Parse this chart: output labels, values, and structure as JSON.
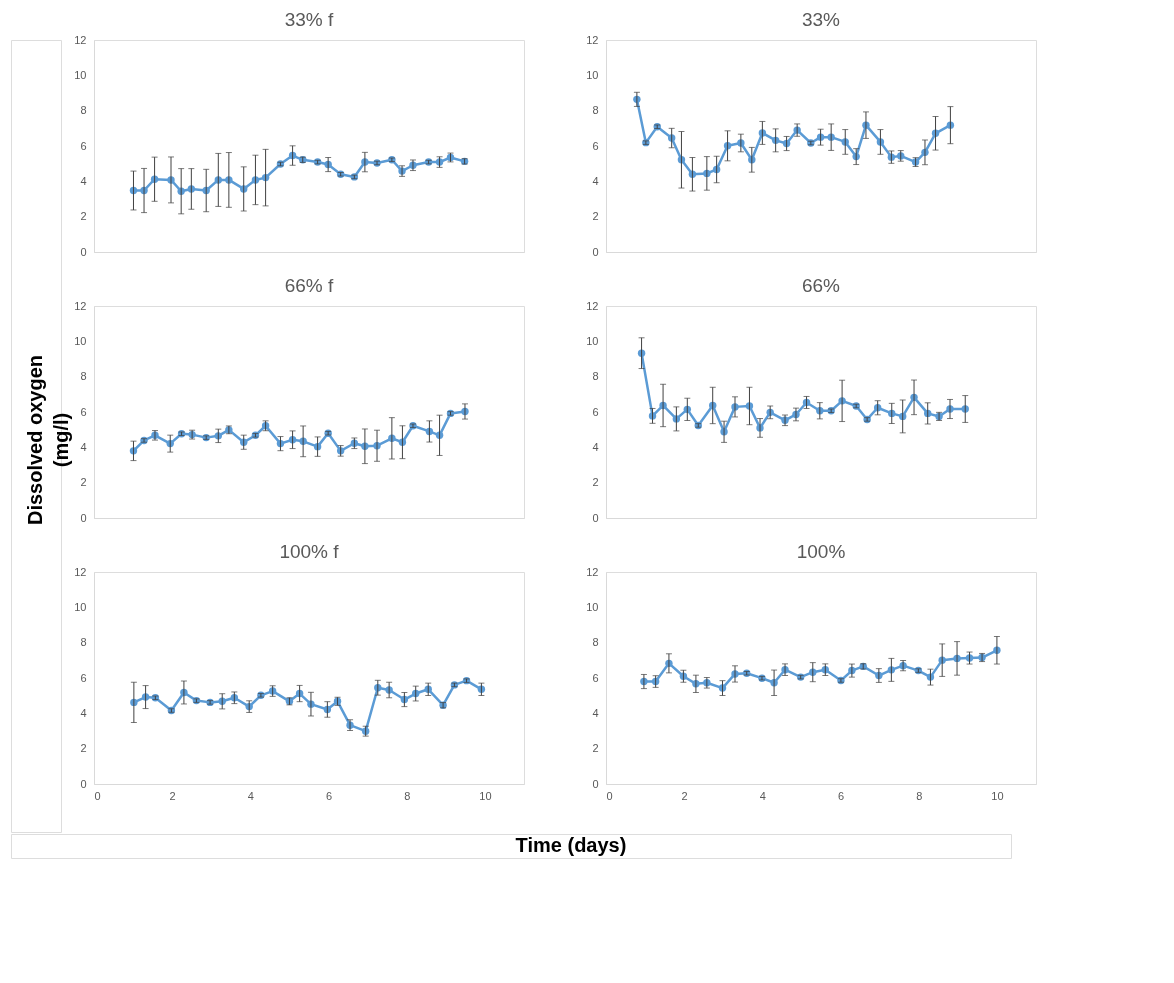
{
  "chart_data": [
    {
      "type": "line",
      "title": "33% f",
      "marker": "circle",
      "grid": false,
      "legend": false,
      "tick_labels": "y",
      "xlim": [
        0,
        11
      ],
      "xticks": [
        0,
        2,
        4,
        6,
        8,
        10
      ],
      "ylim": [
        0,
        12
      ],
      "yticks": [
        0,
        2,
        4,
        6,
        8,
        10,
        12
      ],
      "series": [
        {
          "color": "#5b9bd5",
          "x": [
            1.01,
            1.28,
            1.55,
            1.97,
            2.23,
            2.49,
            2.87,
            3.18,
            3.45,
            3.83,
            4.13,
            4.39,
            4.77,
            5.08,
            5.34,
            5.72,
            5.99,
            6.31,
            6.66,
            6.93,
            7.24,
            7.62,
            7.88,
            8.16,
            8.56,
            8.84,
            9.12,
            9.48
          ],
          "values": [
            3.48,
            3.48,
            4.12,
            4.08,
            3.44,
            3.57,
            3.48,
            4.08,
            4.08,
            3.57,
            4.08,
            4.21,
            4.98,
            5.46,
            5.22,
            5.09,
            4.95,
            4.4,
            4.25,
            5.09,
            5.04,
            5.22,
            4.58,
            4.91,
            5.09,
            5.09,
            5.35,
            5.13
          ],
          "errors": [
            1.1,
            1.25,
            1.25,
            1.3,
            1.28,
            1.15,
            1.2,
            1.5,
            1.55,
            1.25,
            1.4,
            1.6,
            0.1,
            0.55,
            0.15,
            0.1,
            0.4,
            0.1,
            0.1,
            0.55,
            0.1,
            0.1,
            0.3,
            0.3,
            0.1,
            0.3,
            0.25,
            0.15
          ]
        }
      ]
    },
    {
      "type": "line",
      "title": "33%",
      "marker": "circle",
      "grid": false,
      "legend": false,
      "tick_labels": "y",
      "xlim": [
        0,
        11
      ],
      "xticks": [
        0,
        2,
        4,
        6,
        8,
        10
      ],
      "ylim": [
        0,
        12
      ],
      "yticks": [
        0,
        2,
        4,
        6,
        8,
        10,
        12
      ],
      "series": [
        {
          "color": "#5b9bd5",
          "x": [
            0.79,
            1.02,
            1.31,
            1.68,
            1.93,
            2.21,
            2.58,
            2.83,
            3.11,
            3.45,
            3.73,
            4.0,
            4.34,
            4.62,
            4.89,
            5.24,
            5.49,
            5.76,
            6.12,
            6.4,
            6.65,
            7.02,
            7.3,
            7.54,
            7.92,
            8.16,
            8.43,
            8.81
          ],
          "values": [
            8.64,
            6.19,
            7.09,
            6.45,
            5.22,
            4.4,
            4.45,
            4.67,
            6.01,
            6.17,
            5.22,
            6.74,
            6.32,
            6.14,
            6.9,
            6.17,
            6.5,
            6.5,
            6.23,
            5.4,
            7.18,
            6.23,
            5.37,
            5.44,
            5.09,
            5.64,
            6.72,
            7.18
          ],
          "errors": [
            0.4,
            0.1,
            0.1,
            0.55,
            1.6,
            0.95,
            0.95,
            0.75,
            0.85,
            0.5,
            0.7,
            0.65,
            0.65,
            0.4,
            0.35,
            0.1,
            0.45,
            0.75,
            0.7,
            0.45,
            0.75,
            0.7,
            0.35,
            0.3,
            0.25,
            0.7,
            0.95,
            1.05
          ]
        }
      ]
    },
    {
      "type": "line",
      "title": "66% f",
      "ylabel": "Dissolved oxygen (mg/l)",
      "marker": "circle",
      "grid": false,
      "legend": false,
      "tick_labels": "y",
      "xlim": [
        0,
        11
      ],
      "xticks": [
        0,
        2,
        4,
        6,
        8,
        10
      ],
      "ylim": [
        0,
        12
      ],
      "yticks": [
        0,
        2,
        4,
        6,
        8,
        10,
        12
      ],
      "series": [
        {
          "color": "#5b9bd5",
          "x": [
            1.01,
            1.28,
            1.56,
            1.95,
            2.24,
            2.51,
            2.87,
            3.18,
            3.45,
            3.83,
            4.13,
            4.39,
            4.77,
            5.08,
            5.35,
            5.72,
            5.99,
            6.31,
            6.66,
            6.93,
            7.24,
            7.62,
            7.89,
            8.16,
            8.58,
            8.84,
            9.12,
            9.49
          ],
          "values": [
            3.8,
            4.39,
            4.68,
            4.21,
            4.77,
            4.72,
            4.55,
            4.65,
            4.99,
            4.29,
            4.68,
            5.22,
            4.21,
            4.43,
            4.34,
            4.04,
            4.8,
            3.8,
            4.23,
            4.06,
            4.09,
            4.51,
            4.29,
            5.22,
            4.9,
            4.68,
            5.92,
            6.03
          ],
          "errors": [
            0.55,
            0.1,
            0.27,
            0.48,
            0.1,
            0.25,
            0.1,
            0.38,
            0.22,
            0.4,
            0.1,
            0.28,
            0.4,
            0.5,
            0.87,
            0.55,
            0.1,
            0.3,
            0.3,
            0.98,
            0.88,
            1.17,
            0.93,
            0.1,
            0.6,
            1.14,
            0.1,
            0.43
          ]
        }
      ]
    },
    {
      "type": "line",
      "title": "66%",
      "marker": "circle",
      "grid": false,
      "legend": false,
      "tick_labels": "y",
      "xlim": [
        0,
        11
      ],
      "xticks": [
        0,
        2,
        4,
        6,
        8,
        10
      ],
      "ylim": [
        0,
        12
      ],
      "yticks": [
        0,
        2,
        4,
        6,
        8,
        10,
        12
      ],
      "series": [
        {
          "color": "#5b9bd5",
          "x": [
            0.91,
            1.19,
            1.46,
            1.8,
            2.08,
            2.36,
            2.73,
            3.02,
            3.3,
            3.67,
            3.94,
            4.2,
            4.58,
            4.86,
            5.13,
            5.47,
            5.76,
            6.04,
            6.4,
            6.68,
            6.95,
            7.31,
            7.59,
            7.88,
            8.23,
            8.52,
            8.8,
            9.19
          ],
          "values": [
            9.33,
            5.78,
            6.37,
            5.61,
            6.15,
            5.24,
            6.37,
            4.88,
            6.29,
            6.34,
            5.1,
            5.98,
            5.53,
            5.86,
            6.54,
            6.07,
            6.07,
            6.63,
            6.34,
            5.58,
            6.24,
            5.92,
            5.75,
            6.83,
            5.92,
            5.75,
            6.17,
            6.17
          ],
          "errors": [
            0.87,
            0.42,
            1.2,
            0.68,
            0.63,
            0.1,
            1.03,
            0.6,
            0.57,
            1.06,
            0.53,
            0.36,
            0.3,
            0.36,
            0.34,
            0.46,
            0.1,
            1.17,
            0.1,
            0.1,
            0.4,
            0.57,
            0.93,
            0.98,
            0.6,
            0.23,
            0.54,
            0.76
          ]
        }
      ]
    },
    {
      "type": "line",
      "title": "100% f",
      "xlabel": "Time (days)",
      "marker": "circle",
      "grid": false,
      "legend": false,
      "xlim": [
        0,
        11
      ],
      "xticks": [
        0,
        2,
        4,
        6,
        8,
        10
      ],
      "ylim": [
        0,
        12
      ],
      "yticks": [
        0,
        2,
        4,
        6,
        8,
        10,
        12
      ],
      "series": [
        {
          "color": "#5b9bd5",
          "x": [
            1.02,
            1.32,
            1.57,
            1.98,
            2.3,
            2.62,
            2.97,
            3.28,
            3.59,
            3.97,
            4.27,
            4.57,
            5.0,
            5.26,
            5.55,
            5.97,
            6.23,
            6.55,
            6.95,
            7.26,
            7.55,
            7.94,
            8.23,
            8.55,
            8.93,
            9.22,
            9.53,
            9.91
          ],
          "values": [
            4.62,
            4.92,
            4.88,
            4.16,
            5.18,
            4.72,
            4.62,
            4.68,
            4.88,
            4.38,
            5.02,
            5.26,
            4.68,
            5.12,
            4.52,
            4.22,
            4.68,
            3.33,
            2.99,
            5.45,
            5.32,
            4.78,
            5.12,
            5.36,
            4.46,
            5.61,
            5.85,
            5.36
          ],
          "errors": [
            1.14,
            0.65,
            0.1,
            0.1,
            0.65,
            0.1,
            0.1,
            0.43,
            0.33,
            0.33,
            0.1,
            0.3,
            0.2,
            0.46,
            0.67,
            0.44,
            0.23,
            0.3,
            0.28,
            0.42,
            0.44,
            0.4,
            0.42,
            0.35,
            0.15,
            0.1,
            0.1,
            0.35
          ]
        }
      ]
    },
    {
      "type": "line",
      "title": "100%",
      "marker": "circle",
      "grid": false,
      "legend": false,
      "xlim": [
        0,
        11
      ],
      "xticks": [
        0,
        2,
        4,
        6,
        8,
        10
      ],
      "ylim": [
        0,
        12
      ],
      "yticks": [
        0,
        2,
        4,
        6,
        8,
        10,
        12
      ],
      "series": [
        {
          "color": "#5b9bd5",
          "x": [
            0.97,
            1.27,
            1.61,
            1.98,
            2.3,
            2.58,
            2.98,
            3.3,
            3.6,
            3.99,
            4.3,
            4.58,
            4.98,
            5.29,
            5.61,
            6.01,
            6.29,
            6.58,
            6.98,
            7.3,
            7.6,
            7.99,
            8.3,
            8.6,
            8.98,
            9.3,
            9.62,
            10.0
          ],
          "values": [
            5.8,
            5.8,
            6.83,
            6.1,
            5.67,
            5.73,
            5.43,
            6.23,
            6.27,
            5.99,
            5.73,
            6.47,
            6.05,
            6.33,
            6.47,
            5.86,
            6.42,
            6.66,
            6.14,
            6.46,
            6.7,
            6.42,
            6.05,
            7.01,
            7.11,
            7.13,
            7.16,
            7.57
          ],
          "errors": [
            0.4,
            0.33,
            0.54,
            0.34,
            0.49,
            0.3,
            0.42,
            0.46,
            0.1,
            0.1,
            0.72,
            0.33,
            0.1,
            0.54,
            0.33,
            0.1,
            0.37,
            0.15,
            0.39,
            0.65,
            0.29,
            0.1,
            0.45,
            0.92,
            0.95,
            0.34,
            0.23,
            0.78
          ]
        }
      ]
    }
  ]
}
